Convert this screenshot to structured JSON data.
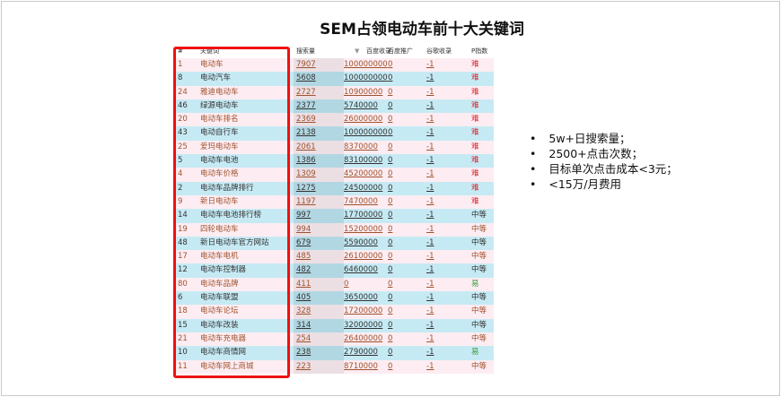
{
  "title": "SEM占领电动车前十大关键词",
  "table": {
    "headers": [
      "#",
      "关键词",
      "搜索量",
      "百度收录",
      "百度推广",
      "谷歌收录",
      "P指数"
    ],
    "sort_icon": "triangle-down-icon",
    "rows": [
      [
        "1",
        "电动车",
        "7907",
        "100000000",
        "0",
        "-1",
        "难"
      ],
      [
        "8",
        "电动汽车",
        "5608",
        "100000000",
        "0",
        "-1",
        "难"
      ],
      [
        "24",
        "雅迪电动车",
        "2727",
        "10900000",
        "0",
        "-1",
        "难"
      ],
      [
        "46",
        "绿源电动车",
        "2377",
        "5740000",
        "0",
        "-1",
        "难"
      ],
      [
        "20",
        "电动车排名",
        "2369",
        "26000000",
        "0",
        "-1",
        "难"
      ],
      [
        "43",
        "电动自行车",
        "2138",
        "100000000",
        "0",
        "-1",
        "难"
      ],
      [
        "25",
        "爱玛电动车",
        "2061",
        "8370000",
        "0",
        "-1",
        "难"
      ],
      [
        "5",
        "电动车电池",
        "1386",
        "83100000",
        "0",
        "-1",
        "难"
      ],
      [
        "4",
        "电动车价格",
        "1309",
        "45200000",
        "0",
        "-1",
        "难"
      ],
      [
        "2",
        "电动车品牌排行",
        "1275",
        "24500000",
        "0",
        "-1",
        "难"
      ],
      [
        "9",
        "新日电动车",
        "1197",
        "7470000",
        "0",
        "-1",
        "难"
      ],
      [
        "14",
        "电动车电池排行榜",
        "997",
        "17700000",
        "0",
        "-1",
        "中等"
      ],
      [
        "19",
        "四轮电动车",
        "994",
        "15200000",
        "0",
        "-1",
        "中等"
      ],
      [
        "48",
        "新日电动车官方网站",
        "679",
        "5590000",
        "0",
        "-1",
        "中等"
      ],
      [
        "17",
        "电动车电机",
        "485",
        "26100000",
        "0",
        "-1",
        "中等"
      ],
      [
        "12",
        "电动车控制器",
        "482",
        "6460000",
        "0",
        "-1",
        "中等"
      ],
      [
        "80",
        "电动车品牌",
        "411",
        "0",
        "0",
        "-1",
        "易"
      ],
      [
        "6",
        "电动车联盟",
        "405",
        "3650000",
        "0",
        "-1",
        "中等"
      ],
      [
        "18",
        "电动车论坛",
        "328",
        "17200000",
        "0",
        "-1",
        "中等"
      ],
      [
        "15",
        "电动车改装",
        "314",
        "32000000",
        "0",
        "-1",
        "中等"
      ],
      [
        "21",
        "电动车充电器",
        "254",
        "26400000",
        "0",
        "-1",
        "中等"
      ],
      [
        "10",
        "电动车商情网",
        "238",
        "2790000",
        "0",
        "-1",
        "易"
      ],
      [
        "11",
        "电动车网上商城",
        "223",
        "8710000",
        "0",
        "-1",
        "中等"
      ]
    ]
  },
  "bullets": [
    "5w+日搜索量；",
    "2500+点击次数；",
    "目标单次点击成本<3元；",
    "<15万/月费用"
  ],
  "colors": {
    "highlight_box": "#ee1111",
    "row_odd": "#fdedf2",
    "row_even": "#c6eaf4",
    "hard": "#e0202a",
    "easy": "#3a9a3a"
  }
}
